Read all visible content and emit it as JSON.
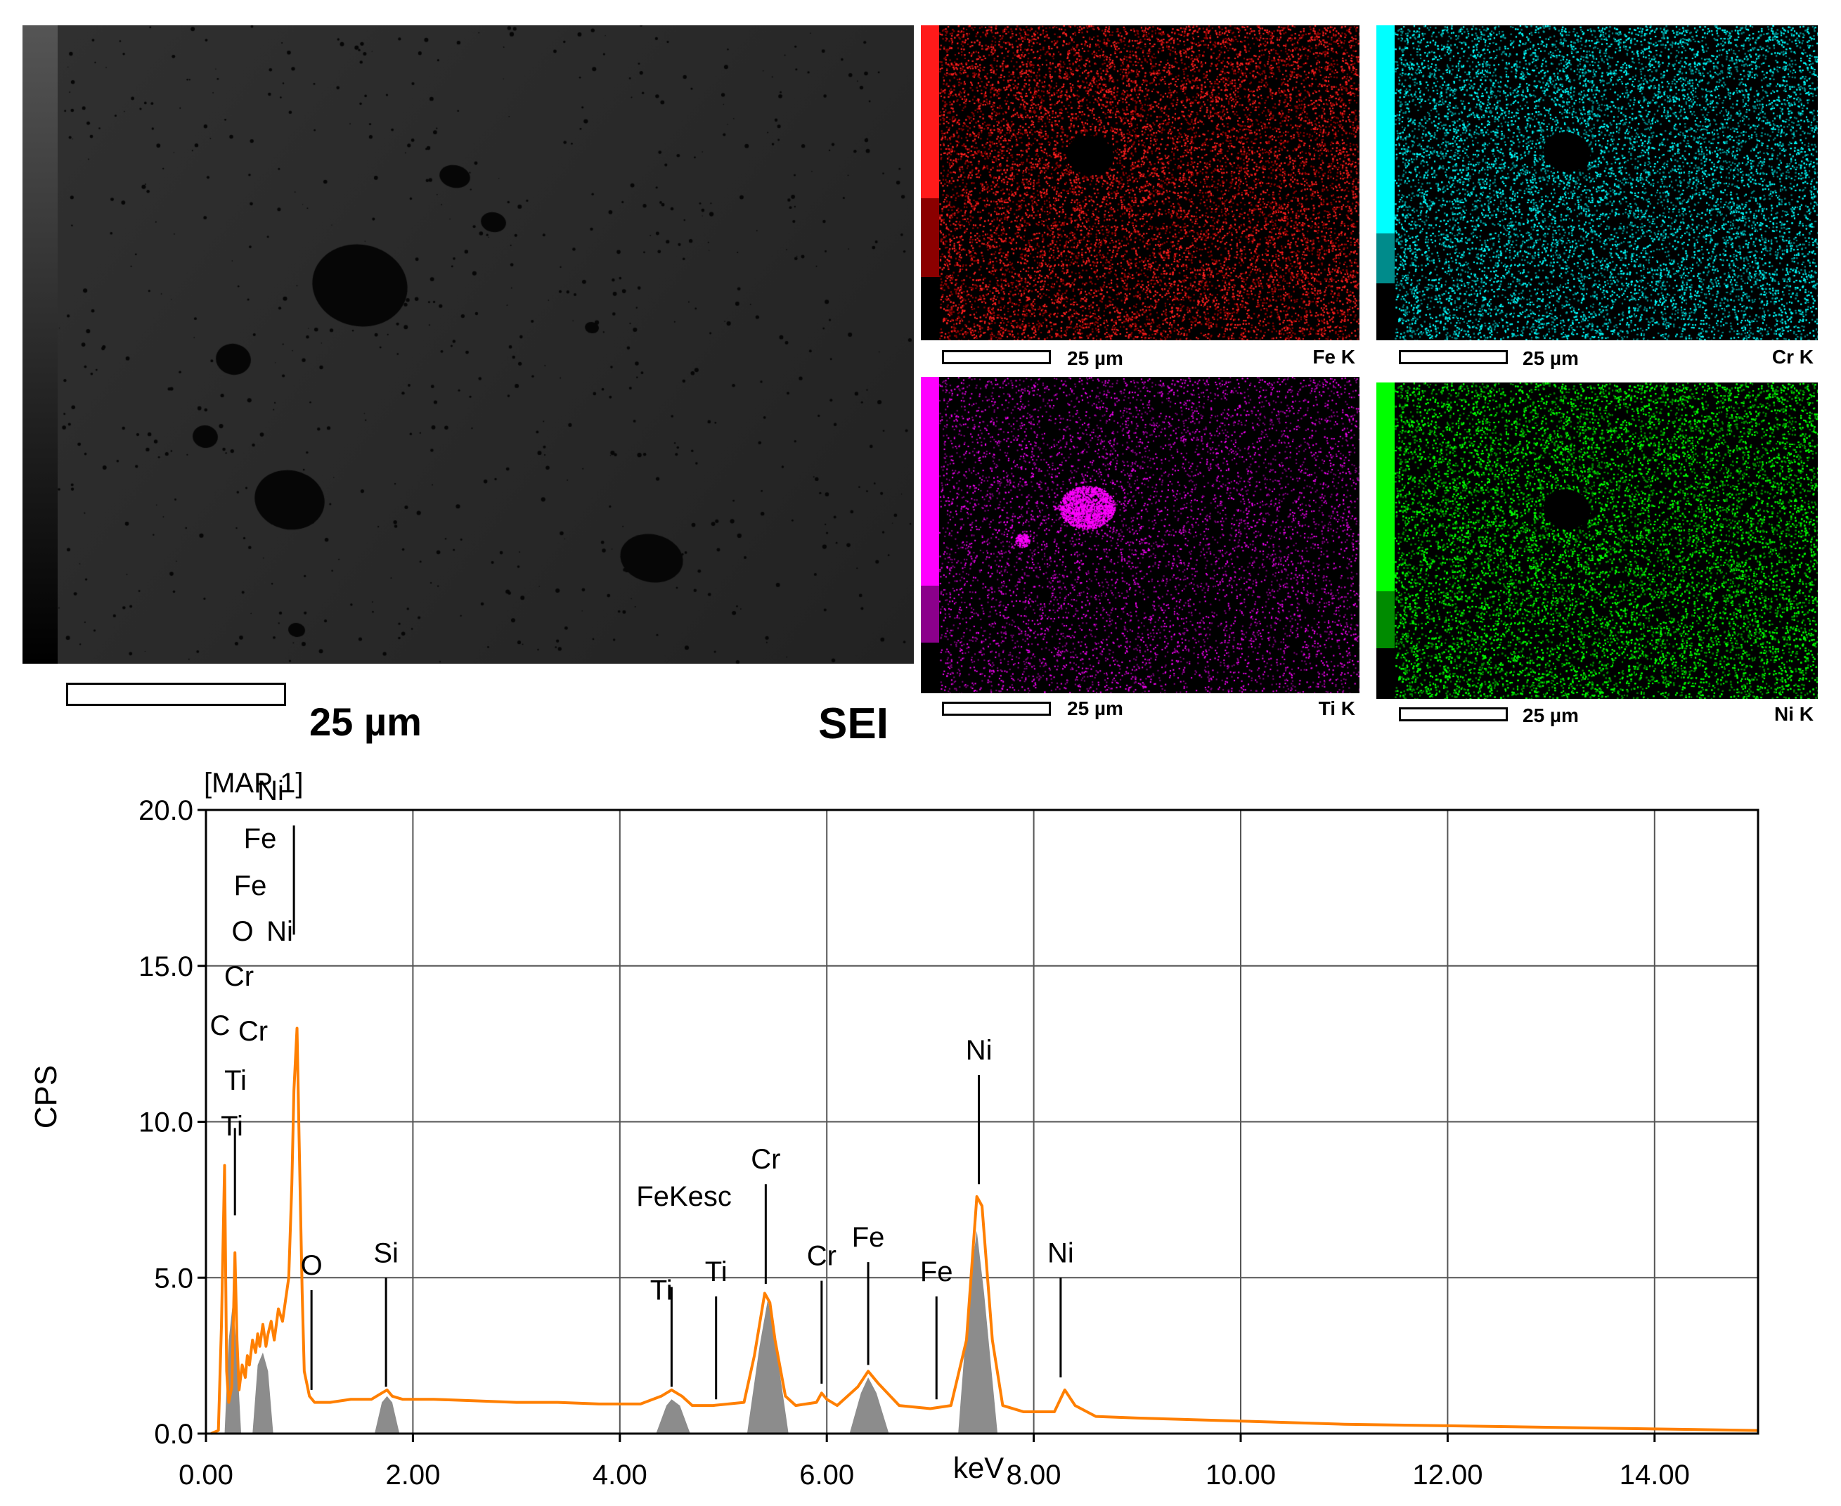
{
  "sei": {
    "scale_label": "25 µm",
    "detector_label": "SEI"
  },
  "maps": [
    {
      "element_label": "Fe K",
      "scale_label": "25 µm",
      "color": "#ff2020",
      "mid_color": "#8b0000"
    },
    {
      "element_label": "Cr K",
      "scale_label": "25 µm",
      "color": "#00ffff",
      "mid_color": "#008b8b"
    },
    {
      "element_label": "Ti K",
      "scale_label": "25 µm",
      "color": "#ff00ff",
      "mid_color": "#8b008b"
    },
    {
      "element_label": "Ni K",
      "scale_label": "25 µm",
      "color": "#00ff00",
      "mid_color": "#008b00"
    }
  ],
  "chart_data": {
    "type": "line",
    "title": "[MAP 1]",
    "xlabel": "keV",
    "ylabel": "CPS",
    "xlim": [
      0,
      15
    ],
    "ylim": [
      0,
      20
    ],
    "grid": true,
    "x_ticks": [
      "0.00",
      "2.00",
      "4.00",
      "6.00",
      "8.00",
      "10.00",
      "12.00",
      "14.00"
    ],
    "y_ticks": [
      "0.0",
      "5.0",
      "10.0",
      "15.0",
      "20.0"
    ],
    "series": [
      {
        "name": "",
        "color": "#ff7f00",
        "x": [
          0.05,
          0.12,
          0.15,
          0.18,
          0.2,
          0.22,
          0.25,
          0.28,
          0.3,
          0.32,
          0.35,
          0.38,
          0.4,
          0.42,
          0.45,
          0.48,
          0.5,
          0.52,
          0.55,
          0.58,
          0.6,
          0.63,
          0.66,
          0.7,
          0.74,
          0.77,
          0.8,
          0.83,
          0.85,
          0.88,
          0.9,
          0.93,
          0.95,
          1.0,
          1.05,
          1.1,
          1.2,
          1.4,
          1.6,
          1.7,
          1.75,
          1.8,
          1.9,
          2.2,
          2.6,
          3.0,
          3.4,
          3.8,
          4.2,
          4.4,
          4.5,
          4.6,
          4.7,
          4.9,
          5.2,
          5.3,
          5.4,
          5.45,
          5.5,
          5.6,
          5.7,
          5.9,
          5.95,
          6.0,
          6.1,
          6.3,
          6.4,
          6.5,
          6.7,
          7.0,
          7.2,
          7.35,
          7.45,
          7.5,
          7.6,
          7.7,
          7.9,
          8.2,
          8.3,
          8.4,
          8.6,
          9.0,
          10.0,
          11.0,
          12.0,
          13.0,
          14.0,
          15.0
        ],
        "y": [
          0.0,
          0.1,
          3.5,
          8.6,
          2.0,
          1.0,
          1.5,
          5.8,
          3.0,
          1.4,
          2.2,
          1.8,
          2.5,
          2.2,
          3.0,
          2.6,
          3.2,
          2.8,
          3.5,
          2.8,
          3.2,
          3.6,
          3.0,
          4.0,
          3.6,
          4.3,
          5.0,
          8.0,
          11.0,
          13.0,
          9.5,
          4.5,
          2.0,
          1.2,
          1.0,
          1.0,
          1.0,
          1.1,
          1.1,
          1.3,
          1.4,
          1.2,
          1.1,
          1.1,
          1.05,
          1.0,
          1.0,
          0.95,
          0.95,
          1.2,
          1.4,
          1.2,
          0.9,
          0.9,
          1.0,
          2.5,
          4.5,
          4.2,
          3.0,
          1.2,
          0.9,
          1.0,
          1.3,
          1.1,
          0.9,
          1.5,
          2.0,
          1.6,
          0.9,
          0.8,
          0.9,
          3.0,
          7.6,
          7.3,
          3.0,
          0.9,
          0.7,
          0.7,
          1.4,
          0.9,
          0.55,
          0.5,
          0.4,
          0.3,
          0.25,
          0.2,
          0.15,
          0.1
        ]
      }
    ],
    "filled_peaks": [
      {
        "x": [
          0.18,
          0.22,
          0.26,
          0.3,
          0.34
        ],
        "y": [
          0,
          3.0,
          4.2,
          2.5,
          0
        ]
      },
      {
        "x": [
          0.45,
          0.5,
          0.55,
          0.6,
          0.65
        ],
        "y": [
          0,
          2.2,
          2.6,
          2.0,
          0
        ]
      },
      {
        "x": [
          1.63,
          1.7,
          1.75,
          1.8,
          1.87
        ],
        "y": [
          0,
          1.0,
          1.2,
          1.0,
          0
        ]
      },
      {
        "x": [
          4.35,
          4.45,
          4.5,
          4.58,
          4.68
        ],
        "y": [
          0,
          0.9,
          1.1,
          0.9,
          0
        ]
      },
      {
        "x": [
          5.23,
          5.35,
          5.43,
          5.5,
          5.63
        ],
        "y": [
          0,
          2.8,
          4.3,
          3.0,
          0
        ]
      },
      {
        "x": [
          6.22,
          6.33,
          6.4,
          6.48,
          6.6
        ],
        "y": [
          0,
          1.3,
          1.8,
          1.3,
          0
        ]
      },
      {
        "x": [
          7.27,
          7.38,
          7.45,
          7.52,
          7.65
        ],
        "y": [
          0,
          4.8,
          6.5,
          4.5,
          0
        ]
      }
    ],
    "peak_labels": [
      {
        "text": "Ni",
        "x": 0.85,
        "line_top": 19.5,
        "line_bottom": 16.0
      },
      {
        "text": "Fe",
        "x": 0.7,
        "line_top": null,
        "line_bottom": null
      },
      {
        "text": "Fe",
        "x": 0.62,
        "line_top": null,
        "line_bottom": null
      },
      {
        "text": "O",
        "x": 0.52,
        "line_top": null,
        "line_bottom": null
      },
      {
        "text": "Ni",
        "x": 0.85,
        "line_top": null,
        "line_bottom": null
      },
      {
        "text": "Cr",
        "x": 0.57,
        "line_top": null,
        "line_bottom": null
      },
      {
        "text": "C",
        "x": 0.28,
        "line_top": 9.8,
        "line_bottom": 7.0
      },
      {
        "text": "Cr",
        "x": 0.57,
        "line_top": null,
        "line_bottom": null
      },
      {
        "text": "Ti",
        "x": 0.45,
        "line_top": null,
        "line_bottom": null
      },
      {
        "text": "Ti",
        "x": 0.4,
        "line_top": null,
        "line_bottom": null
      },
      {
        "text": "O",
        "x": 1.02,
        "line_top": 4.6,
        "line_bottom": 1.4
      },
      {
        "text": "Si",
        "x": 1.74,
        "line_top": 5.0,
        "line_bottom": 1.5
      },
      {
        "text": "FeKesc",
        "x": 4.5,
        "line_top": 4.7,
        "line_bottom": 1.5
      },
      {
        "text": "Ti",
        "x": 4.51,
        "line_top": null,
        "line_bottom": null
      },
      {
        "text": "Ti",
        "x": 4.93,
        "line_top": 4.4,
        "line_bottom": 1.1
      },
      {
        "text": "Cr",
        "x": 5.41,
        "line_top": 8.0,
        "line_bottom": 4.8
      },
      {
        "text": "Cr",
        "x": 5.95,
        "line_top": 4.9,
        "line_bottom": 1.6
      },
      {
        "text": "Fe",
        "x": 6.4,
        "line_top": 5.5,
        "line_bottom": 2.2
      },
      {
        "text": "Fe",
        "x": 7.06,
        "line_top": 4.4,
        "line_bottom": 1.1
      },
      {
        "text": "Ni",
        "x": 7.47,
        "line_top": 11.5,
        "line_bottom": 8.0
      },
      {
        "text": "Ni",
        "x": 8.26,
        "line_top": 5.0,
        "line_bottom": 1.8
      }
    ]
  }
}
